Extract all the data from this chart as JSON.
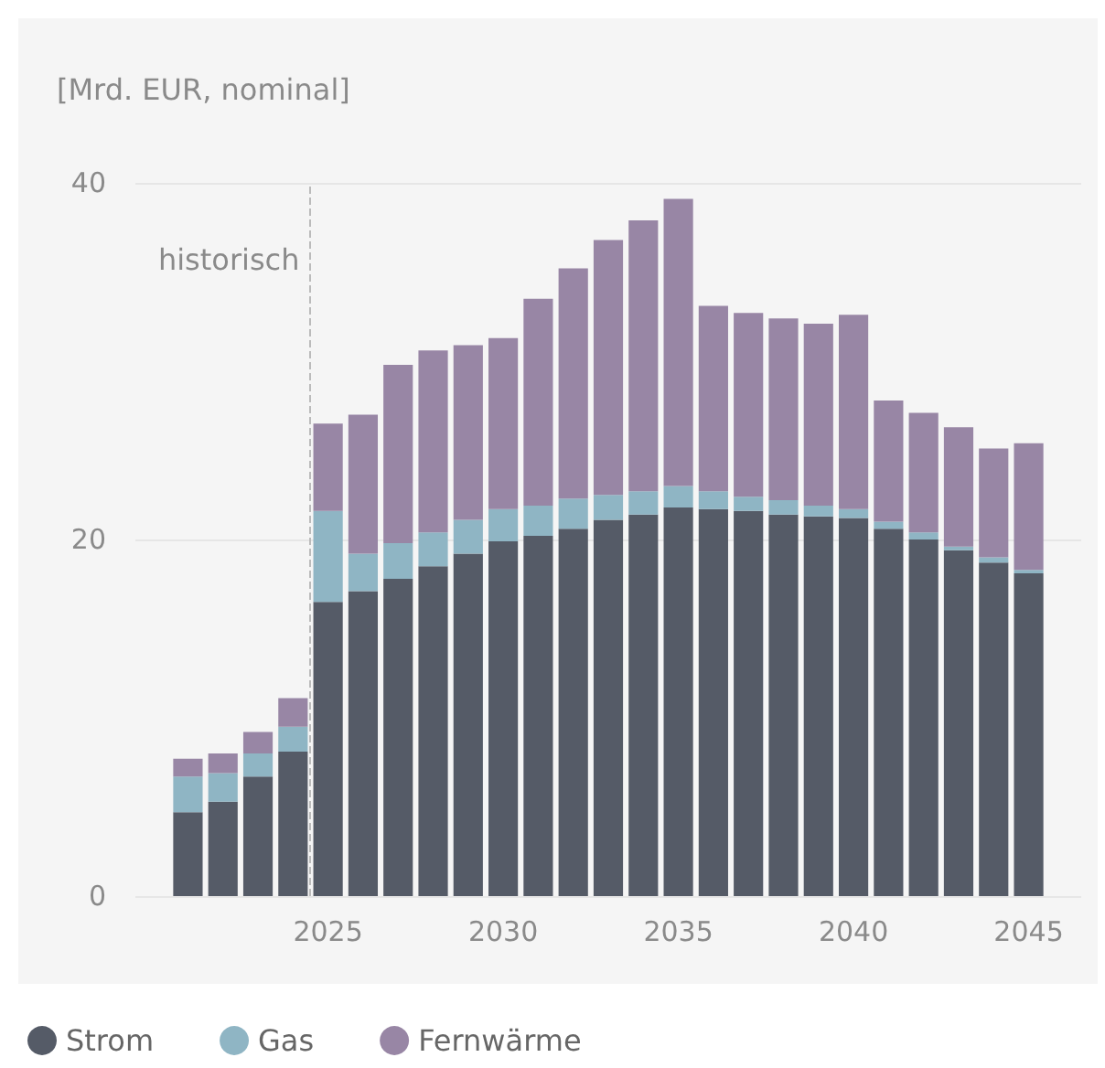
{
  "chart_data": {
    "type": "bar",
    "stacked": true,
    "ylabel": "[Mrd. EUR, nominal]",
    "x": [
      2021,
      2022,
      2023,
      2024,
      2025,
      2026,
      2027,
      2028,
      2029,
      2030,
      2031,
      2032,
      2033,
      2034,
      2035,
      2036,
      2037,
      2038,
      2039,
      2040,
      2041,
      2042,
      2043,
      2044,
      2045
    ],
    "xlim": [
      2019.5,
      2046.5
    ],
    "xticks": [
      2025,
      2030,
      2035,
      2040,
      2045
    ],
    "ylim": [
      0,
      40
    ],
    "yticks": [
      0,
      20,
      40
    ],
    "grid": "y",
    "legend": "bottom left",
    "series": [
      {
        "name": "Strom",
        "color": "#555b67",
        "values": [
          4.7,
          5.3,
          6.7,
          8.1,
          16.5,
          17.1,
          17.8,
          18.5,
          19.2,
          19.9,
          20.2,
          20.6,
          21.1,
          21.4,
          21.8,
          21.7,
          21.6,
          21.4,
          21.3,
          21.2,
          20.6,
          20.0,
          19.4,
          18.7,
          18.1
        ]
      },
      {
        "name": "Gas",
        "color": "#8fb5c4",
        "values": [
          2.0,
          1.6,
          1.3,
          1.4,
          5.1,
          2.1,
          2.0,
          1.9,
          1.9,
          1.8,
          1.7,
          1.7,
          1.4,
          1.3,
          1.2,
          1.0,
          0.8,
          0.8,
          0.6,
          0.5,
          0.4,
          0.4,
          0.2,
          0.3,
          0.2
        ]
      },
      {
        "name": "Fernwärme",
        "color": "#9886a5",
        "values": [
          1.0,
          1.1,
          1.2,
          1.6,
          4.9,
          7.8,
          10.0,
          10.2,
          9.8,
          9.6,
          11.6,
          12.9,
          14.3,
          15.2,
          16.1,
          10.4,
          10.3,
          10.2,
          10.2,
          10.9,
          6.8,
          6.7,
          6.7,
          6.1,
          7.1
        ]
      }
    ],
    "ref_lines": [
      {
        "axis": "x",
        "value": 2024.5,
        "label": "historisch",
        "color": "#bbbbbb",
        "line_style": "dashed"
      }
    ]
  }
}
